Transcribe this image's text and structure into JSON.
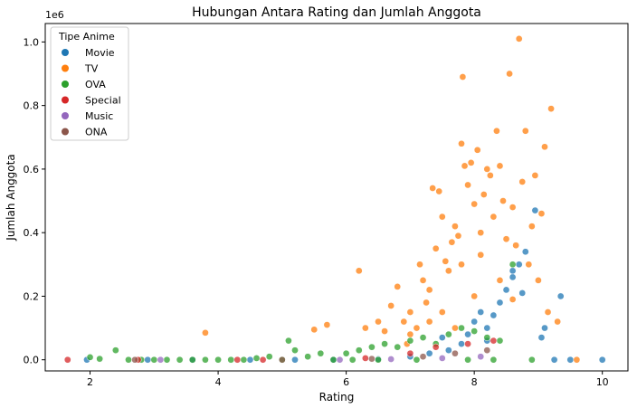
{
  "chart_data": {
    "type": "scatter",
    "title": "Hubungan Antara Rating dan Jumlah Anggota",
    "xlabel": "Rating",
    "ylabel": "Jumlah Anggota",
    "y_offset_label": "1e6",
    "xlim": [
      1.3,
      10.4
    ],
    "ylim": [
      -0.035,
      1.058
    ],
    "x_ticks": [
      2,
      4,
      6,
      8,
      10
    ],
    "x_tick_labels": [
      "2",
      "4",
      "6",
      "8",
      "10"
    ],
    "y_ticks": [
      0.0,
      0.2,
      0.4,
      0.6,
      0.8,
      1.0
    ],
    "y_tick_labels": [
      "0.0",
      "0.2",
      "0.4",
      "0.6",
      "0.8",
      "1.0"
    ],
    "grid": false,
    "legend": {
      "title": "Tipe Anime",
      "placement": "top-left"
    },
    "series": [
      {
        "name": "Movie",
        "color": "#1f77b4",
        "points": [
          [
            1.95,
            0.0
          ],
          [
            2.9,
            0.0
          ],
          [
            3.6,
            0.0
          ],
          [
            4.5,
            0.0
          ],
          [
            5.2,
            0.0
          ],
          [
            5.8,
            0.0
          ],
          [
            6.5,
            0.002
          ],
          [
            7.0,
            0.01
          ],
          [
            7.3,
            0.02
          ],
          [
            7.6,
            0.03
          ],
          [
            7.8,
            0.05
          ],
          [
            7.9,
            0.08
          ],
          [
            8.0,
            0.12
          ],
          [
            8.1,
            0.15
          ],
          [
            8.2,
            0.1
          ],
          [
            8.3,
            0.14
          ],
          [
            8.4,
            0.18
          ],
          [
            8.5,
            0.22
          ],
          [
            8.6,
            0.26
          ],
          [
            8.7,
            0.3
          ],
          [
            8.75,
            0.21
          ],
          [
            8.8,
            0.34
          ],
          [
            8.95,
            0.47
          ],
          [
            9.05,
            0.07
          ],
          [
            9.1,
            0.1
          ],
          [
            9.35,
            0.2
          ],
          [
            9.25,
            0.0
          ],
          [
            9.5,
            0.0
          ],
          [
            10.0,
            0.0
          ],
          [
            8.6,
            0.28
          ],
          [
            8.2,
            0.06
          ],
          [
            7.5,
            0.07
          ]
        ]
      },
      {
        "name": "TV",
        "color": "#ff7f0e",
        "points": [
          [
            3.8,
            0.085
          ],
          [
            5.5,
            0.095
          ],
          [
            5.7,
            0.11
          ],
          [
            6.2,
            0.28
          ],
          [
            6.3,
            0.1
          ],
          [
            6.5,
            0.12
          ],
          [
            6.6,
            0.09
          ],
          [
            6.7,
            0.17
          ],
          [
            6.8,
            0.23
          ],
          [
            6.9,
            0.12
          ],
          [
            7.0,
            0.15
          ],
          [
            7.1,
            0.1
          ],
          [
            7.15,
            0.3
          ],
          [
            7.2,
            0.25
          ],
          [
            7.25,
            0.18
          ],
          [
            7.3,
            0.22
          ],
          [
            7.35,
            0.54
          ],
          [
            7.4,
            0.35
          ],
          [
            7.45,
            0.53
          ],
          [
            7.5,
            0.45
          ],
          [
            7.55,
            0.31
          ],
          [
            7.6,
            0.28
          ],
          [
            7.65,
            0.37
          ],
          [
            7.7,
            0.42
          ],
          [
            7.75,
            0.39
          ],
          [
            7.8,
            0.68
          ],
          [
            7.82,
            0.89
          ],
          [
            7.85,
            0.61
          ],
          [
            7.9,
            0.55
          ],
          [
            7.95,
            0.62
          ],
          [
            8.0,
            0.49
          ],
          [
            8.05,
            0.66
          ],
          [
            8.1,
            0.4
          ],
          [
            8.15,
            0.52
          ],
          [
            8.2,
            0.6
          ],
          [
            8.25,
            0.58
          ],
          [
            8.3,
            0.45
          ],
          [
            8.35,
            0.72
          ],
          [
            8.4,
            0.61
          ],
          [
            8.45,
            0.5
          ],
          [
            8.5,
            0.38
          ],
          [
            8.55,
            0.9
          ],
          [
            8.6,
            0.48
          ],
          [
            8.65,
            0.36
          ],
          [
            8.7,
            1.01
          ],
          [
            8.75,
            0.56
          ],
          [
            8.8,
            0.72
          ],
          [
            8.85,
            0.3
          ],
          [
            8.9,
            0.42
          ],
          [
            8.95,
            0.58
          ],
          [
            9.0,
            0.25
          ],
          [
            9.05,
            0.46
          ],
          [
            9.1,
            0.67
          ],
          [
            9.15,
            0.15
          ],
          [
            9.2,
            0.79
          ],
          [
            9.3,
            0.12
          ],
          [
            9.6,
            0.0
          ],
          [
            7.0,
            0.08
          ],
          [
            7.5,
            0.15
          ],
          [
            8.0,
            0.2
          ],
          [
            8.4,
            0.25
          ],
          [
            7.8,
            0.3
          ],
          [
            8.1,
            0.33
          ],
          [
            7.3,
            0.12
          ],
          [
            6.95,
            0.05
          ],
          [
            7.7,
            0.1
          ],
          [
            8.6,
            0.19
          ]
        ]
      },
      {
        "name": "OVA",
        "color": "#2ca02c",
        "points": [
          [
            2.0,
            0.008
          ],
          [
            2.15,
            0.003
          ],
          [
            2.4,
            0.03
          ],
          [
            2.6,
            0.0
          ],
          [
            2.8,
            0.0
          ],
          [
            3.0,
            0.0
          ],
          [
            3.2,
            0.0
          ],
          [
            3.4,
            0.0
          ],
          [
            3.6,
            0.0
          ],
          [
            3.8,
            0.0
          ],
          [
            4.0,
            0.0
          ],
          [
            4.2,
            0.0
          ],
          [
            4.4,
            0.0
          ],
          [
            4.6,
            0.005
          ],
          [
            4.8,
            0.01
          ],
          [
            5.0,
            0.0
          ],
          [
            5.1,
            0.06
          ],
          [
            5.2,
            0.03
          ],
          [
            5.4,
            0.01
          ],
          [
            5.6,
            0.02
          ],
          [
            5.8,
            0.0
          ],
          [
            6.0,
            0.02
          ],
          [
            6.2,
            0.03
          ],
          [
            6.4,
            0.04
          ],
          [
            6.6,
            0.05
          ],
          [
            6.8,
            0.04
          ],
          [
            7.0,
            0.06
          ],
          [
            7.2,
            0.07
          ],
          [
            7.4,
            0.05
          ],
          [
            7.6,
            0.08
          ],
          [
            7.8,
            0.1
          ],
          [
            8.0,
            0.09
          ],
          [
            8.2,
            0.07
          ],
          [
            8.4,
            0.06
          ],
          [
            8.6,
            0.3
          ],
          [
            8.9,
            0.0
          ],
          [
            6.1,
            0.0
          ],
          [
            6.5,
            0.0
          ],
          [
            7.1,
            0.0
          ],
          [
            7.9,
            0.0
          ],
          [
            8.3,
            0.0
          ]
        ]
      },
      {
        "name": "Special",
        "color": "#d62728",
        "points": [
          [
            1.65,
            0.0
          ],
          [
            2.75,
            0.0
          ],
          [
            4.7,
            0.0
          ],
          [
            6.3,
            0.005
          ],
          [
            7.0,
            0.02
          ],
          [
            7.4,
            0.04
          ],
          [
            7.9,
            0.05
          ],
          [
            8.3,
            0.06
          ],
          [
            4.3,
            0.0
          ]
        ]
      },
      {
        "name": "Music",
        "color": "#9467bd",
        "points": [
          [
            3.1,
            0.0
          ],
          [
            5.9,
            0.0
          ],
          [
            6.7,
            0.002
          ],
          [
            7.5,
            0.005
          ],
          [
            8.1,
            0.01
          ]
        ]
      },
      {
        "name": "ONA",
        "color": "#8c564b",
        "points": [
          [
            2.7,
            0.0
          ],
          [
            5.0,
            0.0
          ],
          [
            6.4,
            0.003
          ],
          [
            7.2,
            0.01
          ],
          [
            7.7,
            0.02
          ],
          [
            8.2,
            0.03
          ]
        ]
      }
    ]
  }
}
